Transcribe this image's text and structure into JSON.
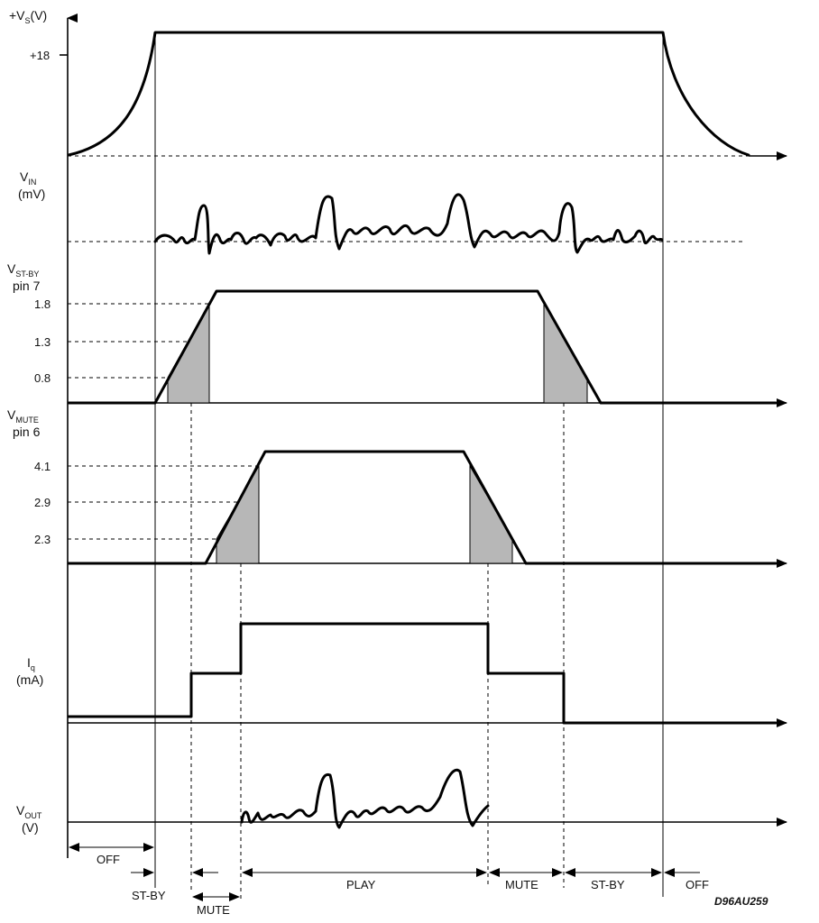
{
  "labels": {
    "vs_main": "+V",
    "vs_sub": "S",
    "vs_unit": "(V)",
    "vin_main": "V",
    "vin_sub": "IN",
    "vin_unit": "(mV)",
    "vstby_main": "V",
    "vstby_sub": "ST-BY",
    "vstby_pin": "pin 7",
    "vmute_main": "V",
    "vmute_sub": "MUTE",
    "vmute_pin": "pin 6",
    "iq_main": "I",
    "iq_sub": "q",
    "iq_unit": "(mA)",
    "vout_main": "V",
    "vout_sub": "OUT",
    "vout_unit": "(V)"
  },
  "ticks": {
    "vs": "+18",
    "stby": [
      "1.8",
      "1.3",
      "0.8"
    ],
    "mute": [
      "4.1",
      "2.9",
      "2.3"
    ]
  },
  "phases": {
    "off_1": "OFF",
    "stby_1": "ST-BY",
    "mute_1": "MUTE",
    "play": "PLAY",
    "mute_2": "MUTE",
    "stby_2": "ST-BY",
    "off_2": "OFF"
  },
  "figure_code": "D96AU259"
}
